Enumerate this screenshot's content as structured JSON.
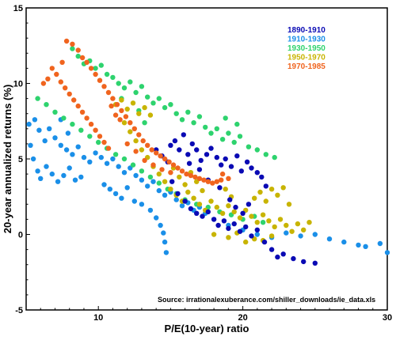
{
  "chart_data": {
    "type": "scatter",
    "xlabel": "P/E(10-year) ratio",
    "ylabel": "20-year annualized returns (%)",
    "xlim": [
      5,
      30
    ],
    "ylim": [
      -5,
      15
    ],
    "xticks": [
      10,
      20,
      30
    ],
    "yticks": [
      -5,
      0,
      5,
      10,
      15
    ],
    "grid": false,
    "legend_position": "top-right",
    "annotation": "Source: irrationalexuberance.com/shiller_downloads/ie_data.xls",
    "series": [
      {
        "name": "1890-1910",
        "color": "#0a0ab4",
        "points": [
          [
            14.0,
            5.6
          ],
          [
            14.4,
            5.2
          ],
          [
            14.8,
            4.8
          ],
          [
            15.0,
            5.9
          ],
          [
            15.3,
            6.2
          ],
          [
            15.6,
            5.6
          ],
          [
            15.9,
            6.6
          ],
          [
            16.2,
            5.3
          ],
          [
            16.5,
            6.0
          ],
          [
            16.8,
            5.6
          ],
          [
            17.1,
            4.9
          ],
          [
            17.5,
            5.3
          ],
          [
            17.8,
            5.7
          ],
          [
            18.2,
            5.1
          ],
          [
            18.5,
            4.6
          ],
          [
            18.8,
            5.0
          ],
          [
            19.2,
            4.5
          ],
          [
            19.6,
            5.2
          ],
          [
            19.9,
            4.2
          ],
          [
            20.3,
            4.8
          ],
          [
            20.6,
            4.4
          ],
          [
            21.0,
            4.1
          ],
          [
            21.3,
            3.8
          ],
          [
            21.6,
            3.2
          ],
          [
            15.1,
            3.5
          ],
          [
            15.5,
            2.7
          ],
          [
            16.0,
            2.2
          ],
          [
            16.4,
            1.7
          ],
          [
            16.8,
            1.4
          ],
          [
            17.2,
            1.2
          ],
          [
            17.6,
            1.5
          ],
          [
            18.0,
            1.0
          ],
          [
            18.3,
            0.6
          ],
          [
            18.7,
            0.9
          ],
          [
            19.0,
            0.4
          ],
          [
            19.4,
            0.7
          ],
          [
            19.8,
            0.2
          ],
          [
            20.2,
            0.5
          ],
          [
            20.6,
            -0.1
          ],
          [
            21.0,
            0.3
          ],
          [
            21.5,
            -0.5
          ],
          [
            22.0,
            -1.0
          ],
          [
            22.4,
            -1.5
          ],
          [
            22.8,
            -1.3
          ],
          [
            23.5,
            -1.6
          ],
          [
            24.2,
            -1.8
          ],
          [
            25.0,
            -1.9
          ],
          [
            19.1,
            2.3
          ],
          [
            19.5,
            1.8
          ],
          [
            20.0,
            1.4
          ],
          [
            20.4,
            2.0
          ],
          [
            18.4,
            3.1
          ],
          [
            17.6,
            3.6
          ],
          [
            17.0,
            4.3
          ],
          [
            16.3,
            4.7
          ]
        ]
      },
      {
        "name": "1910-1930",
        "color": "#1a8fe8",
        "points": [
          [
            5.2,
            7.3
          ],
          [
            5.6,
            7.6
          ],
          [
            5.9,
            6.9
          ],
          [
            6.3,
            6.2
          ],
          [
            6.6,
            7.0
          ],
          [
            7.0,
            6.4
          ],
          [
            7.4,
            5.9
          ],
          [
            7.8,
            5.6
          ],
          [
            8.2,
            5.3
          ],
          [
            8.6,
            5.8
          ],
          [
            9.0,
            5.1
          ],
          [
            9.4,
            4.8
          ],
          [
            9.8,
            5.4
          ],
          [
            10.2,
            5.1
          ],
          [
            10.6,
            4.7
          ],
          [
            11.0,
            5.0
          ],
          [
            11.4,
            4.5
          ],
          [
            11.8,
            4.1
          ],
          [
            12.2,
            4.4
          ],
          [
            12.6,
            3.9
          ],
          [
            13.0,
            3.6
          ],
          [
            13.4,
            3.2
          ],
          [
            13.8,
            3.5
          ],
          [
            14.2,
            2.9
          ],
          [
            14.6,
            2.6
          ],
          [
            15.0,
            2.8
          ],
          [
            15.4,
            2.3
          ],
          [
            15.8,
            1.9
          ],
          [
            16.2,
            2.1
          ],
          [
            16.6,
            1.6
          ],
          [
            17.0,
            1.8
          ],
          [
            17.4,
            1.4
          ],
          [
            5.3,
            5.9
          ],
          [
            5.5,
            5.0
          ],
          [
            5.8,
            4.2
          ],
          [
            6.0,
            3.7
          ],
          [
            6.4,
            4.5
          ],
          [
            6.8,
            4.0
          ],
          [
            7.2,
            3.5
          ],
          [
            7.6,
            3.9
          ],
          [
            8.0,
            4.4
          ],
          [
            8.4,
            3.6
          ],
          [
            8.8,
            3.8
          ],
          [
            10.4,
            3.3
          ],
          [
            10.8,
            3.0
          ],
          [
            11.2,
            2.7
          ],
          [
            11.6,
            2.4
          ],
          [
            12.0,
            3.1
          ],
          [
            12.5,
            2.2
          ],
          [
            13.0,
            2.0
          ],
          [
            13.6,
            1.6
          ],
          [
            14.0,
            1.1
          ],
          [
            14.3,
            0.6
          ],
          [
            14.5,
            0.1
          ],
          [
            14.6,
            -0.5
          ],
          [
            14.7,
            -1.2
          ],
          [
            18.0,
            1.0
          ],
          [
            19.0,
            0.6
          ],
          [
            20.0,
            0.3
          ],
          [
            21.0,
            0.0
          ],
          [
            22.0,
            -0.2
          ],
          [
            23.0,
            0.1
          ],
          [
            24.0,
            -0.1
          ],
          [
            25.0,
            0.0
          ],
          [
            26.0,
            -0.3
          ],
          [
            27.0,
            -0.5
          ],
          [
            28.0,
            -0.7
          ],
          [
            28.5,
            -0.8
          ],
          [
            29.5,
            -0.6
          ],
          [
            30.0,
            -1.2
          ],
          [
            7.4,
            7.6
          ],
          [
            7.9,
            6.7
          ]
        ]
      },
      {
        "name": "1930-1950",
        "color": "#2ed36e",
        "points": [
          [
            8.2,
            12.3
          ],
          [
            8.6,
            11.8
          ],
          [
            9.0,
            11.3
          ],
          [
            9.4,
            11.5
          ],
          [
            9.8,
            11.0
          ],
          [
            10.2,
            11.2
          ],
          [
            10.6,
            10.6
          ],
          [
            11.0,
            10.4
          ],
          [
            11.4,
            10.0
          ],
          [
            11.8,
            9.7
          ],
          [
            12.2,
            10.1
          ],
          [
            12.6,
            9.4
          ],
          [
            13.0,
            9.8
          ],
          [
            13.4,
            9.1
          ],
          [
            13.8,
            8.7
          ],
          [
            14.2,
            9.0
          ],
          [
            14.6,
            8.4
          ],
          [
            15.0,
            8.6
          ],
          [
            15.4,
            8.0
          ],
          [
            15.8,
            7.6
          ],
          [
            16.2,
            8.1
          ],
          [
            16.6,
            7.4
          ],
          [
            17.0,
            7.8
          ],
          [
            17.4,
            7.1
          ],
          [
            17.8,
            6.7
          ],
          [
            18.2,
            7.0
          ],
          [
            18.6,
            6.3
          ],
          [
            19.0,
            6.7
          ],
          [
            19.4,
            6.1
          ],
          [
            19.8,
            6.5
          ],
          [
            20.4,
            5.8
          ],
          [
            21.0,
            5.6
          ],
          [
            21.6,
            5.3
          ],
          [
            22.2,
            5.1
          ],
          [
            5.8,
            9.0
          ],
          [
            6.4,
            8.6
          ],
          [
            7.0,
            8.1
          ],
          [
            7.6,
            7.7
          ],
          [
            8.2,
            7.3
          ],
          [
            8.8,
            6.9
          ],
          [
            9.4,
            6.5
          ],
          [
            10.0,
            6.1
          ],
          [
            10.6,
            5.7
          ],
          [
            11.2,
            5.3
          ],
          [
            11.8,
            5.0
          ],
          [
            12.4,
            4.6
          ],
          [
            13.0,
            4.2
          ],
          [
            13.6,
            3.8
          ],
          [
            14.2,
            3.4
          ],
          [
            14.8,
            3.0
          ],
          [
            15.4,
            2.7
          ],
          [
            16.0,
            2.3
          ],
          [
            16.8,
            2.0
          ],
          [
            17.6,
            1.8
          ],
          [
            18.4,
            1.5
          ],
          [
            19.2,
            1.3
          ],
          [
            20.0,
            1.0
          ],
          [
            20.8,
            1.2
          ],
          [
            21.4,
            0.8
          ],
          [
            19.6,
            7.3
          ],
          [
            18.8,
            7.7
          ],
          [
            12.8,
            8.2
          ],
          [
            13.2,
            7.4
          ],
          [
            11.6,
            9.0
          ]
        ]
      },
      {
        "name": "1950-1970",
        "color": "#c8b400",
        "points": [
          [
            11.2,
            8.6
          ],
          [
            11.6,
            8.9
          ],
          [
            12.0,
            8.3
          ],
          [
            12.4,
            8.7
          ],
          [
            12.8,
            8.0
          ],
          [
            13.2,
            8.4
          ],
          [
            13.6,
            7.9
          ],
          [
            11.8,
            7.4
          ],
          [
            12.2,
            6.8
          ],
          [
            12.6,
            6.2
          ],
          [
            13.0,
            5.6
          ],
          [
            13.4,
            5.1
          ],
          [
            13.8,
            4.5
          ],
          [
            14.2,
            4.0
          ],
          [
            14.6,
            3.5
          ],
          [
            15.0,
            3.0
          ],
          [
            15.4,
            2.6
          ],
          [
            15.8,
            2.2
          ],
          [
            16.2,
            2.8
          ],
          [
            16.6,
            2.4
          ],
          [
            17.0,
            2.0
          ],
          [
            17.4,
            1.6
          ],
          [
            17.8,
            2.2
          ],
          [
            18.2,
            1.8
          ],
          [
            18.6,
            1.4
          ],
          [
            19.0,
            1.9
          ],
          [
            19.4,
            1.5
          ],
          [
            19.8,
            1.1
          ],
          [
            20.2,
            1.6
          ],
          [
            20.6,
            1.2
          ],
          [
            21.0,
            0.8
          ],
          [
            21.4,
            1.3
          ],
          [
            21.8,
            0.9
          ],
          [
            22.2,
            0.5
          ],
          [
            22.6,
            1.0
          ],
          [
            23.0,
            0.6
          ],
          [
            23.4,
            0.2
          ],
          [
            23.8,
            0.7
          ],
          [
            24.2,
            0.3
          ],
          [
            24.6,
            0.8
          ],
          [
            15.2,
            4.4
          ],
          [
            15.6,
            3.8
          ],
          [
            16.0,
            3.3
          ],
          [
            16.4,
            4.1
          ],
          [
            16.8,
            3.5
          ],
          [
            17.2,
            2.9
          ],
          [
            18.8,
            3.0
          ],
          [
            19.2,
            2.5
          ],
          [
            20.8,
            2.4
          ],
          [
            21.2,
            2.8
          ],
          [
            21.6,
            2.2
          ],
          [
            22.0,
            3.0
          ],
          [
            22.4,
            2.6
          ],
          [
            22.8,
            3.1
          ],
          [
            23.2,
            2.0
          ],
          [
            19.0,
            -0.2
          ],
          [
            19.6,
            0.1
          ],
          [
            20.2,
            -0.5
          ],
          [
            20.8,
            -0.3
          ],
          [
            21.4,
            -0.4
          ],
          [
            22.0,
            -0.1
          ],
          [
            18.0,
            0.0
          ]
        ]
      },
      {
        "name": "1970-1985",
        "color": "#f0641e",
        "points": [
          [
            7.8,
            12.8
          ],
          [
            8.2,
            12.6
          ],
          [
            8.6,
            12.2
          ],
          [
            8.9,
            11.7
          ],
          [
            9.2,
            11.4
          ],
          [
            9.5,
            11.0
          ],
          [
            9.8,
            10.6
          ],
          [
            10.1,
            10.2
          ],
          [
            10.4,
            9.8
          ],
          [
            10.7,
            9.4
          ],
          [
            11.0,
            9.0
          ],
          [
            11.3,
            8.6
          ],
          [
            11.6,
            8.2
          ],
          [
            11.9,
            7.8
          ],
          [
            12.2,
            7.4
          ],
          [
            12.5,
            7.0
          ],
          [
            12.8,
            6.6
          ],
          [
            13.1,
            6.2
          ],
          [
            13.4,
            5.9
          ],
          [
            13.7,
            5.6
          ],
          [
            14.0,
            5.4
          ],
          [
            14.3,
            5.2
          ],
          [
            14.6,
            5.0
          ],
          [
            14.9,
            4.8
          ],
          [
            15.2,
            4.6
          ],
          [
            15.5,
            4.4
          ],
          [
            15.8,
            4.2
          ],
          [
            16.1,
            4.0
          ],
          [
            16.4,
            3.9
          ],
          [
            16.7,
            3.8
          ],
          [
            17.0,
            3.7
          ],
          [
            17.3,
            3.6
          ],
          [
            17.6,
            3.5
          ],
          [
            17.9,
            3.4
          ],
          [
            18.2,
            3.5
          ],
          [
            18.5,
            3.6
          ],
          [
            6.5,
            10.3
          ],
          [
            6.8,
            11.0
          ],
          [
            7.1,
            10.6
          ],
          [
            7.4,
            10.1
          ],
          [
            7.7,
            9.7
          ],
          [
            8.0,
            9.3
          ],
          [
            8.3,
            8.9
          ],
          [
            8.6,
            8.5
          ],
          [
            8.9,
            8.1
          ],
          [
            9.2,
            7.7
          ],
          [
            9.5,
            7.3
          ],
          [
            9.8,
            6.9
          ],
          [
            10.1,
            6.5
          ],
          [
            10.4,
            6.1
          ],
          [
            10.7,
            5.7
          ],
          [
            6.2,
            10.0
          ],
          [
            7.5,
            11.4
          ],
          [
            10.9,
            8.5
          ],
          [
            11.2,
            7.9
          ],
          [
            11.5,
            7.6
          ],
          [
            12.0,
            6.0
          ],
          [
            12.6,
            5.5
          ],
          [
            13.2,
            4.9
          ],
          [
            13.8,
            4.6
          ],
          [
            14.4,
            4.3
          ],
          [
            15.0,
            4.1
          ],
          [
            18.6,
            4.0
          ],
          [
            19.0,
            3.7
          ]
        ]
      }
    ]
  }
}
